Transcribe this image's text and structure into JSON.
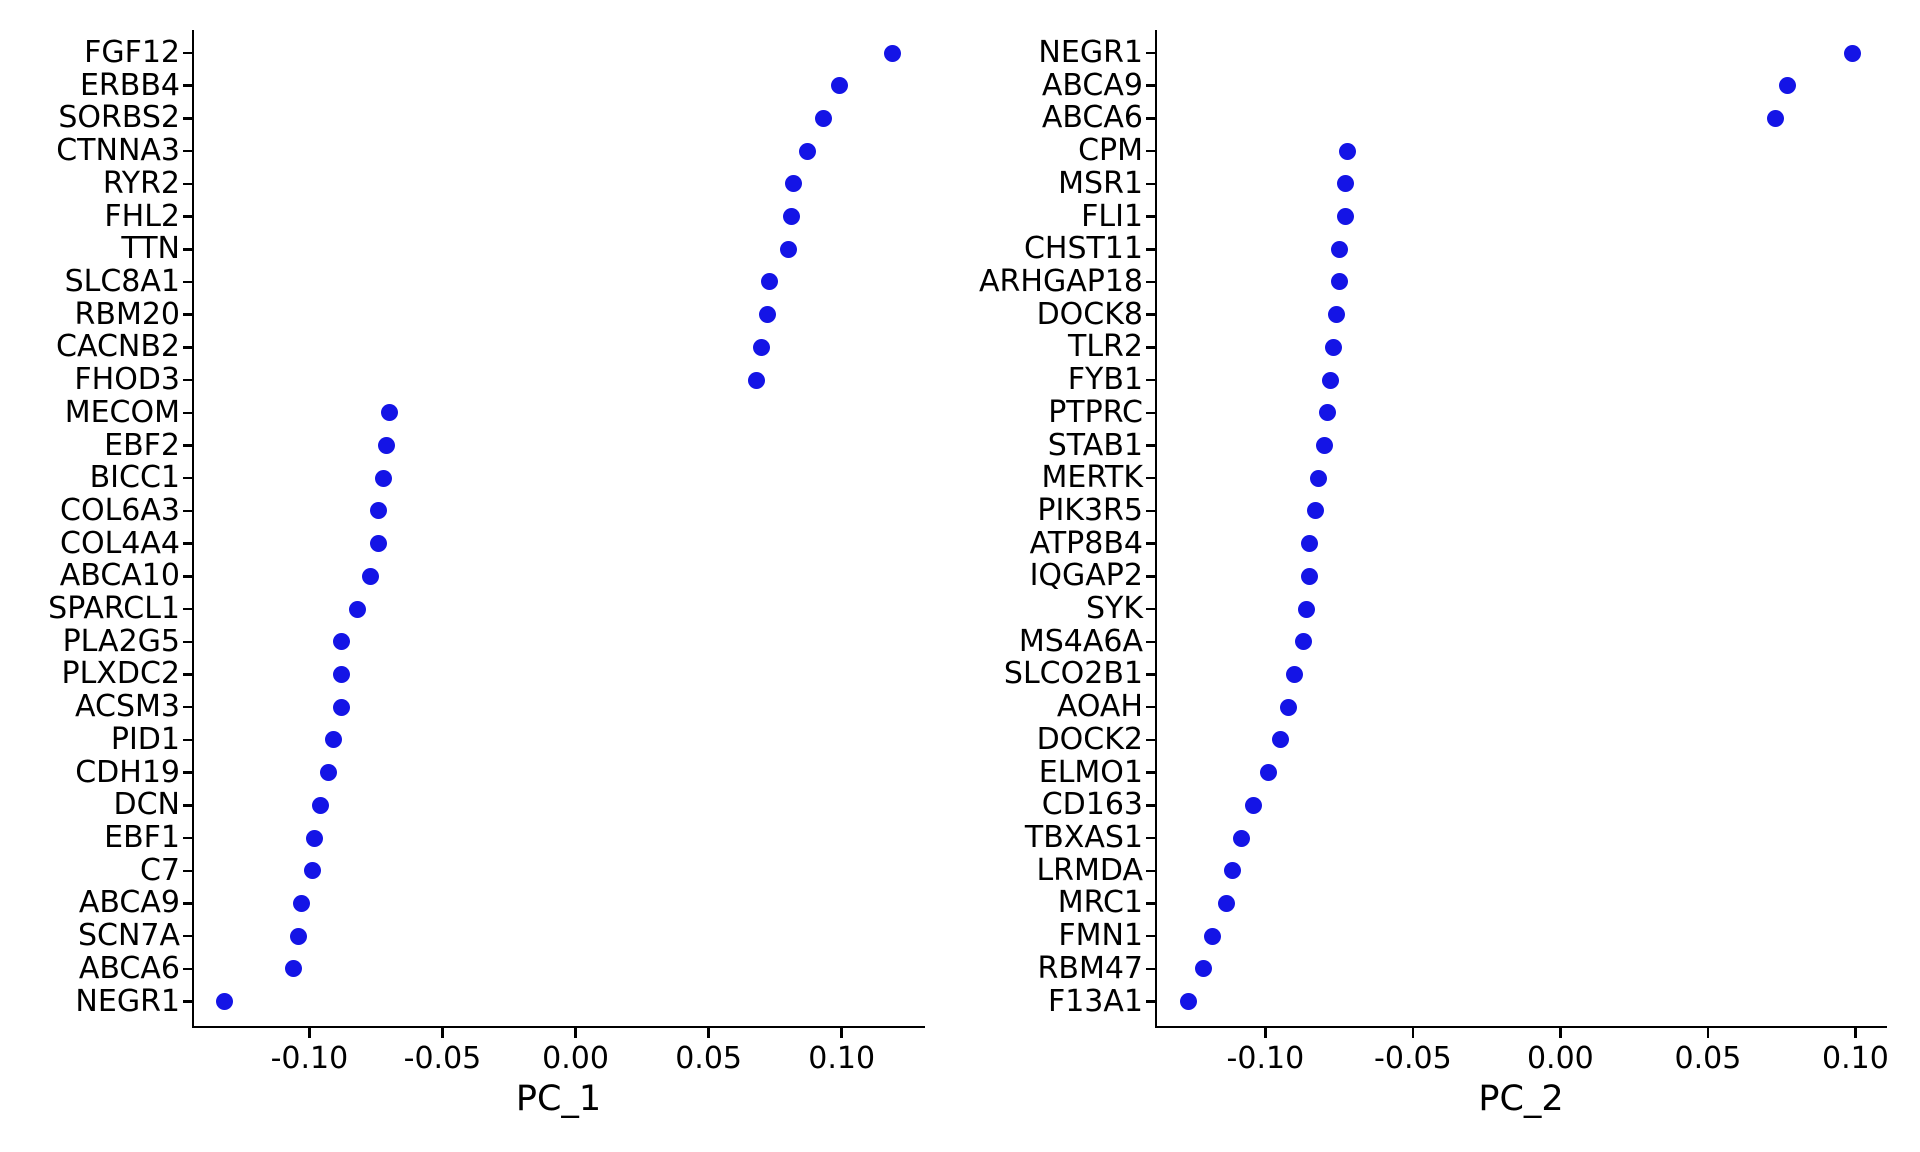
{
  "figure": {
    "background": "#ffffff",
    "dot_color": "#1414e6",
    "axis_color": "#000000",
    "text_color": "#000000"
  },
  "chart_data": [
    {
      "type": "scatter",
      "subtype": "loadings-dot-plot",
      "title": "",
      "xlabel": "PC_1",
      "legend": "none",
      "grid": false,
      "xlim": [
        -0.1441,
        0.1313
      ],
      "x_tick_values": [
        -0.1,
        -0.05,
        0.0,
        0.05,
        0.1
      ],
      "x_tick_labels": [
        "-0.10",
        "-0.05",
        "0.00",
        "0.05",
        "0.10"
      ],
      "genes": [
        "FGF12",
        "ERBB4",
        "SORBS2",
        "CTNNA3",
        "RYR2",
        "FHL2",
        "TTN",
        "SLC8A1",
        "RBM20",
        "CACNB2",
        "FHOD3",
        "MECOM",
        "EBF2",
        "BICC1",
        "COL6A3",
        "COL4A4",
        "ABCA10",
        "SPARCL1",
        "PLA2G5",
        "PLXDC2",
        "ACSM3",
        "PID1",
        "CDH19",
        "DCN",
        "EBF1",
        "C7",
        "ABCA9",
        "SCN7A",
        "ABCA6",
        "NEGR1"
      ],
      "values": [
        0.119,
        0.099,
        0.093,
        0.087,
        0.082,
        0.081,
        0.08,
        0.073,
        0.072,
        0.07,
        0.068,
        -0.07,
        -0.071,
        -0.072,
        -0.074,
        -0.074,
        -0.077,
        -0.082,
        -0.088,
        -0.088,
        -0.088,
        -0.091,
        -0.093,
        -0.096,
        -0.098,
        -0.099,
        -0.103,
        -0.104,
        -0.106,
        -0.132
      ]
    },
    {
      "type": "scatter",
      "subtype": "loadings-dot-plot",
      "title": "",
      "xlabel": "PC_2",
      "legend": "none",
      "grid": false,
      "xlim": [
        -0.1374,
        0.1107
      ],
      "x_tick_values": [
        -0.1,
        -0.05,
        0.0,
        0.05,
        0.1
      ],
      "x_tick_labels": [
        "-0.10",
        "-0.05",
        "0.00",
        "0.05",
        "0.10"
      ],
      "genes": [
        "NEGR1",
        "ABCA9",
        "ABCA6",
        "CPM",
        "MSR1",
        "FLI1",
        "CHST11",
        "ARHGAP18",
        "DOCK8",
        "TLR2",
        "FYB1",
        "PTPRC",
        "STAB1",
        "MERTK",
        "PIK3R5",
        "ATP8B4",
        "IQGAP2",
        "SYK",
        "MS4A6A",
        "SLCO2B1",
        "AOAH",
        "DOCK2",
        "ELMO1",
        "CD163",
        "TBXAS1",
        "LRMDA",
        "MRC1",
        "FMN1",
        "RBM47",
        "F13A1"
      ],
      "values": [
        0.099,
        0.077,
        0.073,
        -0.072,
        -0.073,
        -0.073,
        -0.075,
        -0.075,
        -0.076,
        -0.077,
        -0.078,
        -0.079,
        -0.08,
        -0.082,
        -0.083,
        -0.085,
        -0.085,
        -0.086,
        -0.087,
        -0.09,
        -0.092,
        -0.095,
        -0.099,
        -0.104,
        -0.108,
        -0.111,
        -0.113,
        -0.118,
        -0.121,
        -0.126
      ]
    }
  ]
}
